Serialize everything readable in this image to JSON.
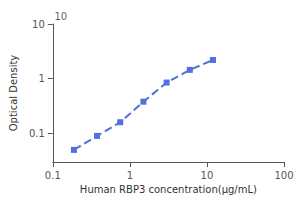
{
  "chart_data": {
    "type": "line",
    "xlabel": "Human RBP3 concentration(μg/mL)",
    "ylabel": "Optical Density",
    "x": [
      0.188,
      0.375,
      0.75,
      1.5,
      3.0,
      6.0,
      12.0
    ],
    "values": [
      0.05,
      0.09,
      0.16,
      0.38,
      0.85,
      1.45,
      2.2
    ],
    "log": true,
    "xlim": [
      0.1,
      100
    ],
    "xticks": [
      0.1,
      1,
      10,
      100
    ],
    "ylim": [
      0.03,
      10
    ],
    "yticks": [
      0.1,
      1,
      10
    ],
    "marker": "square",
    "line_style": "dashed",
    "grid": false,
    "annotations": [
      {
        "text": "10",
        "x": 0.105,
        "y": 10
      }
    ]
  }
}
